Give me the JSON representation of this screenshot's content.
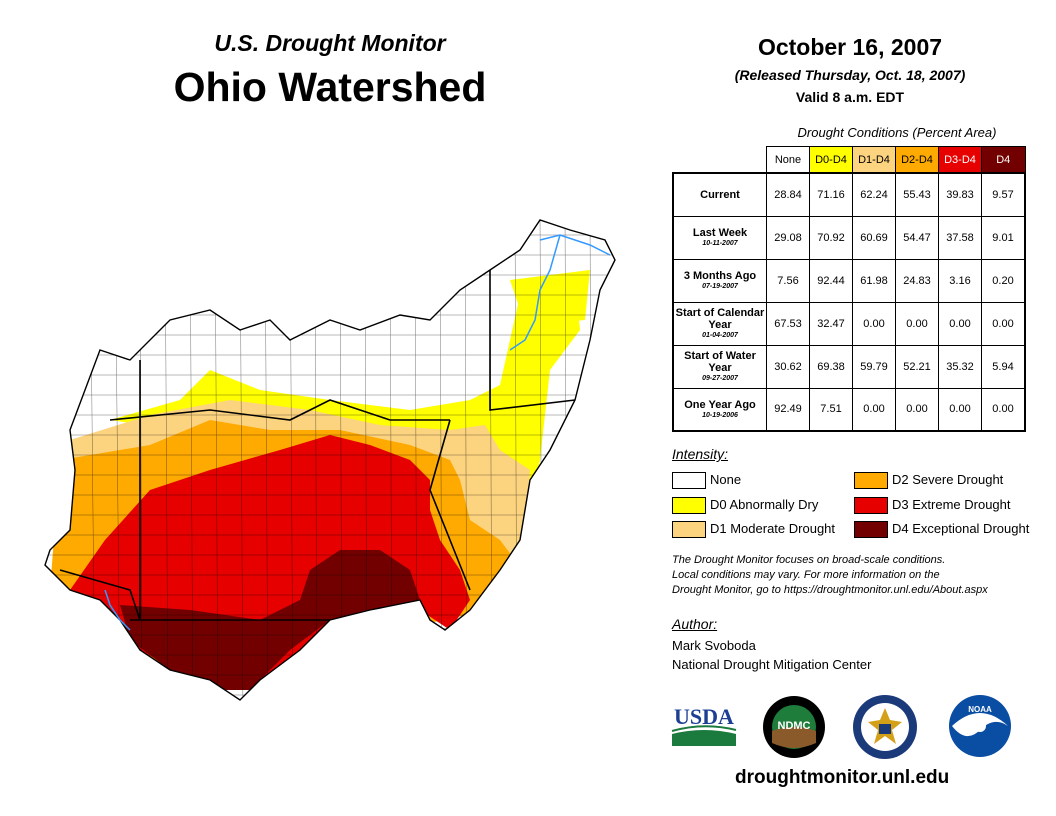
{
  "header": {
    "subtitle": "U.S. Drought Monitor",
    "title": "Ohio Watershed",
    "date": "October 16, 2007",
    "released": "(Released Thursday, Oct. 18, 2007)",
    "valid": "Valid 8 a.m. EDT"
  },
  "table": {
    "caption": "Drought Conditions (Percent Area)",
    "columns": [
      "None",
      "D0-D4",
      "D1-D4",
      "D2-D4",
      "D3-D4",
      "D4"
    ],
    "rows": [
      {
        "label": "Current",
        "date": "",
        "values": [
          "28.84",
          "71.16",
          "62.24",
          "55.43",
          "39.83",
          "9.57"
        ]
      },
      {
        "label": "Last Week",
        "date": "10-11-2007",
        "values": [
          "29.08",
          "70.92",
          "60.69",
          "54.47",
          "37.58",
          "9.01"
        ]
      },
      {
        "label": "3 Months Ago",
        "date": "07-19-2007",
        "values": [
          "7.56",
          "92.44",
          "61.98",
          "24.83",
          "3.16",
          "0.20"
        ]
      },
      {
        "label": "Start of Calendar Year",
        "date": "01-04-2007",
        "values": [
          "67.53",
          "32.47",
          "0.00",
          "0.00",
          "0.00",
          "0.00"
        ]
      },
      {
        "label": "Start of Water Year",
        "date": "09-27-2007",
        "values": [
          "30.62",
          "69.38",
          "59.79",
          "52.21",
          "35.32",
          "5.94"
        ]
      },
      {
        "label": "One Year Ago",
        "date": "10-19-2006",
        "values": [
          "92.49",
          "7.51",
          "0.00",
          "0.00",
          "0.00",
          "0.00"
        ]
      }
    ]
  },
  "legend": {
    "heading": "Intensity:",
    "items": [
      {
        "label": "None",
        "color": "#ffffff"
      },
      {
        "label": "D0 Abnormally Dry",
        "color": "#ffff00"
      },
      {
        "label": "D1 Moderate Drought",
        "color": "#fcd37f"
      },
      {
        "label": "D2 Severe Drought",
        "color": "#ffaa00"
      },
      {
        "label": "D3 Extreme Drought",
        "color": "#e60000"
      },
      {
        "label": "D4 Exceptional Drought",
        "color": "#730000"
      }
    ]
  },
  "note": {
    "line1": "The Drought Monitor focuses on broad-scale conditions.",
    "line2": "Local conditions may vary. For more information on the",
    "line3": "Drought Monitor, go to https://droughtmonitor.unl.edu/About.aspx"
  },
  "author": {
    "heading": "Author:",
    "name": "Mark Svoboda",
    "org": "National Drought Mitigation Center"
  },
  "logos": {
    "usda": "USDA",
    "ndmc": "NDMC",
    "noaa": "NOAA"
  },
  "footer": {
    "url": "droughtmonitor.unl.edu"
  }
}
